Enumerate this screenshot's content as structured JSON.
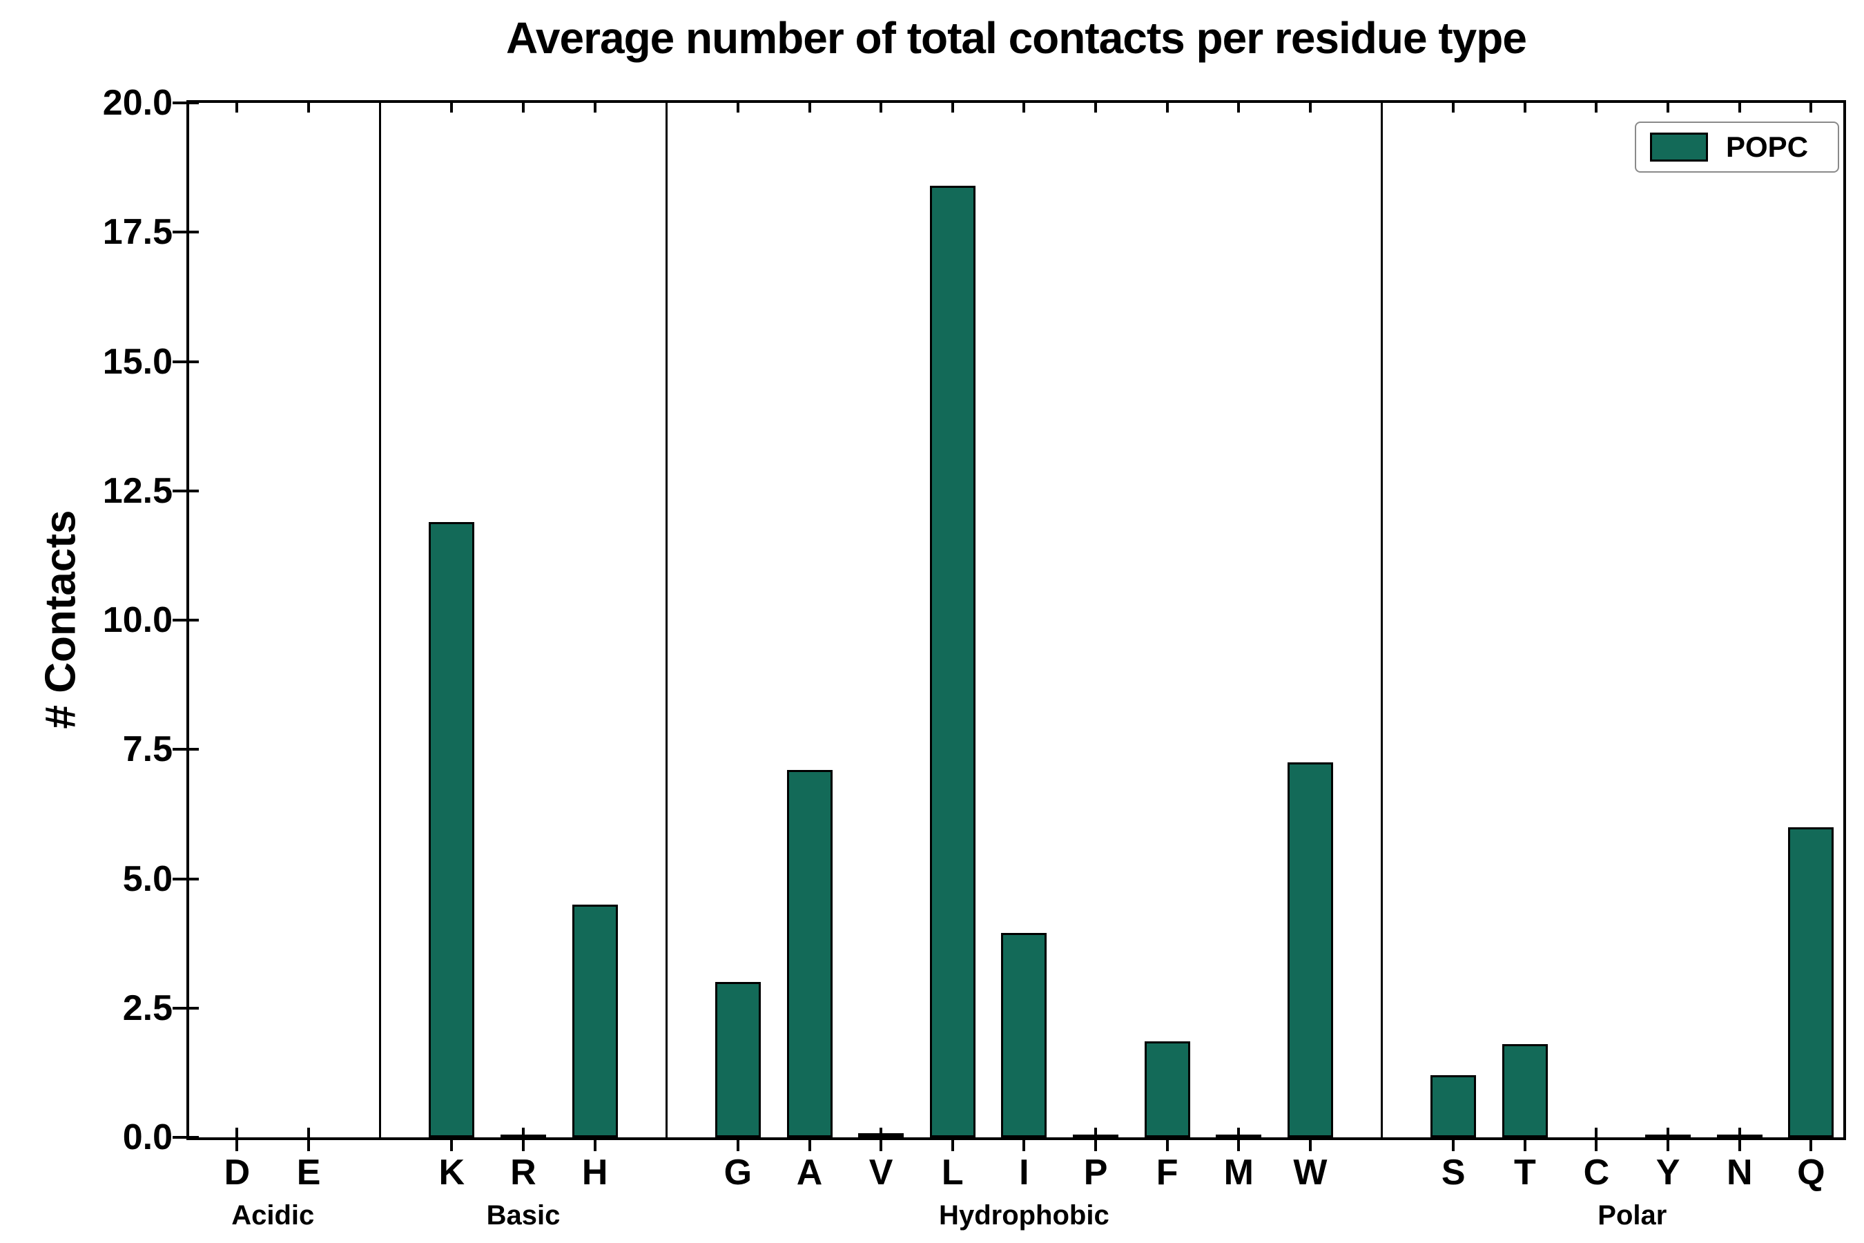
{
  "title": "Average number of total contacts per residue type",
  "ylabel": "# Contacts",
  "legend": {
    "label": "POPC",
    "color": "#136a58"
  },
  "chart_data": {
    "type": "bar",
    "title": "Average number of total contacts per residue type",
    "xlabel": "",
    "ylabel": "# Contacts",
    "ylim": [
      0,
      20
    ],
    "y_ticks": [
      0,
      2.5,
      5,
      7.5,
      10,
      12.5,
      15,
      17.5,
      20
    ],
    "grid": false,
    "legend_position": "upper right",
    "series_name": "POPC",
    "bar_color": "#136a58",
    "bar_edge_color": "#000000",
    "groups": [
      {
        "label": "Acidic",
        "categories": [
          "D",
          "E"
        ],
        "values": [
          0.0,
          0.0
        ]
      },
      {
        "label": "Basic",
        "categories": [
          "K",
          "R",
          "H"
        ],
        "values": [
          11.9,
          0.05,
          4.5
        ]
      },
      {
        "label": "Hydrophobic",
        "categories": [
          "G",
          "A",
          "V",
          "L",
          "I",
          "P",
          "F",
          "M",
          "W"
        ],
        "values": [
          3.0,
          7.1,
          0.08,
          18.4,
          3.95,
          0.06,
          1.85,
          0.06,
          7.25
        ]
      },
      {
        "label": "Polar",
        "categories": [
          "S",
          "T",
          "C",
          "Y",
          "N",
          "Q"
        ],
        "values": [
          1.2,
          1.8,
          0.0,
          0.06,
          0.05,
          6.0
        ]
      }
    ]
  }
}
